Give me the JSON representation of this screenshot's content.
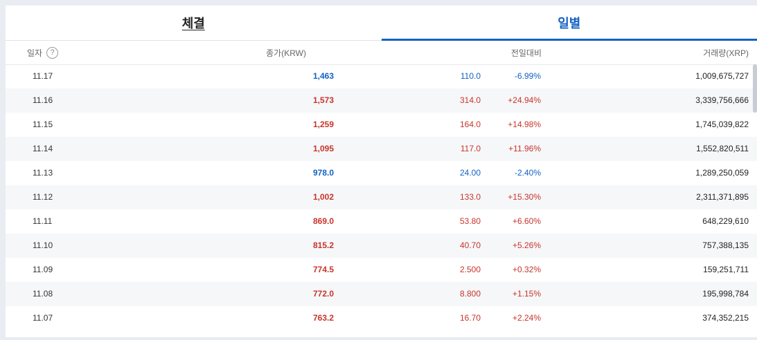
{
  "tabs": [
    {
      "label": "체결",
      "active": false
    },
    {
      "label": "일별",
      "active": true
    }
  ],
  "header": {
    "date": "일자",
    "help": "?",
    "price": "종가(KRW)",
    "change": "전일대비",
    "volume": "거래량(XRP)"
  },
  "colors": {
    "up": "#c8342a",
    "down": "#1261c4"
  },
  "rows": [
    {
      "date": "11.17",
      "price": "1,463",
      "diff": "110.0",
      "rate": "-6.99%",
      "volume": "1,009,675,727",
      "dir": "down"
    },
    {
      "date": "11.16",
      "price": "1,573",
      "diff": "314.0",
      "rate": "+24.94%",
      "volume": "3,339,756,666",
      "dir": "up"
    },
    {
      "date": "11.15",
      "price": "1,259",
      "diff": "164.0",
      "rate": "+14.98%",
      "volume": "1,745,039,822",
      "dir": "up"
    },
    {
      "date": "11.14",
      "price": "1,095",
      "diff": "117.0",
      "rate": "+11.96%",
      "volume": "1,552,820,511",
      "dir": "up"
    },
    {
      "date": "11.13",
      "price": "978.0",
      "diff": "24.00",
      "rate": "-2.40%",
      "volume": "1,289,250,059",
      "dir": "down"
    },
    {
      "date": "11.12",
      "price": "1,002",
      "diff": "133.0",
      "rate": "+15.30%",
      "volume": "2,311,371,895",
      "dir": "up"
    },
    {
      "date": "11.11",
      "price": "869.0",
      "diff": "53.80",
      "rate": "+6.60%",
      "volume": "648,229,610",
      "dir": "up"
    },
    {
      "date": "11.10",
      "price": "815.2",
      "diff": "40.70",
      "rate": "+5.26%",
      "volume": "757,388,135",
      "dir": "up"
    },
    {
      "date": "11.09",
      "price": "774.5",
      "diff": "2.500",
      "rate": "+0.32%",
      "volume": "159,251,711",
      "dir": "up"
    },
    {
      "date": "11.08",
      "price": "772.0",
      "diff": "8.800",
      "rate": "+1.15%",
      "volume": "195,998,784",
      "dir": "up"
    },
    {
      "date": "11.07",
      "price": "763.2",
      "diff": "16.70",
      "rate": "+2.24%",
      "volume": "374,352,215",
      "dir": "up"
    }
  ]
}
